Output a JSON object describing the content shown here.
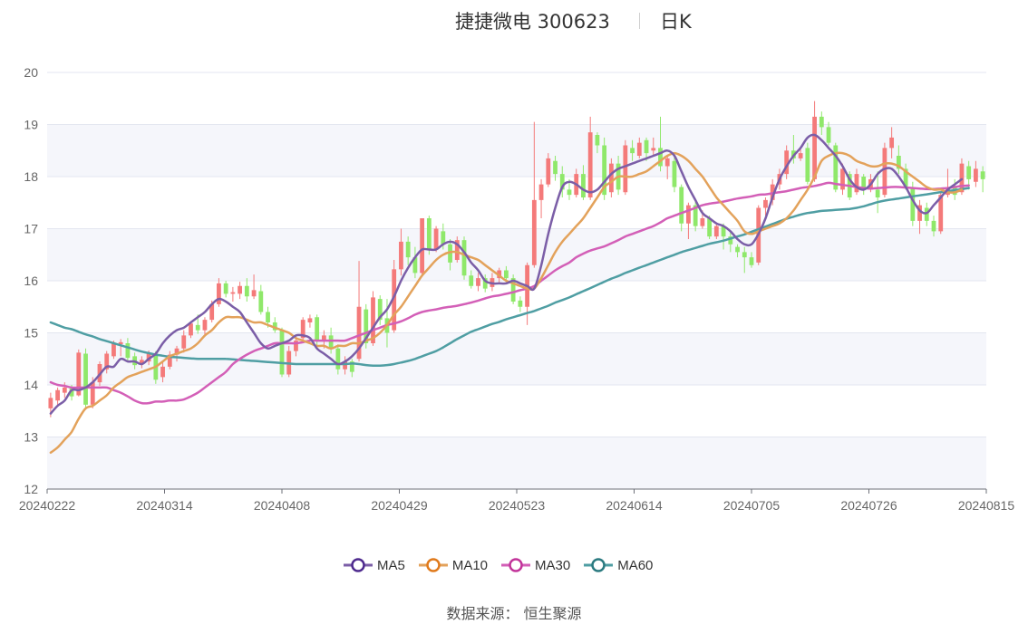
{
  "header": {
    "title": "捷捷微电 300623",
    "subtitle": "日K"
  },
  "footer": {
    "source": "数据来源： 恒生聚源"
  },
  "colors": {
    "up": "#f47a7a",
    "down": "#8fe86a",
    "grid_band": "#f5f6fb",
    "MA5": "#7b5ea7",
    "MA10": "#e3a25b",
    "MA30": "#d35fb7",
    "MA60": "#4f9ea3"
  },
  "chart_data": {
    "type": "candlestick",
    "ylim": [
      12,
      20
    ],
    "yticks": [
      12,
      13,
      14,
      15,
      16,
      17,
      18,
      19,
      20
    ],
    "xticks": [
      "20240222",
      "20240314",
      "20240408",
      "20240429",
      "20240523",
      "20240614",
      "20240705",
      "20240726",
      "20240815"
    ],
    "grid": true,
    "legend_position": "bottom",
    "series_names": [
      "MA5",
      "MA10",
      "MA30",
      "MA60"
    ],
    "candles": [
      [
        13.55,
        13.75,
        13.38,
        13.85
      ],
      [
        13.7,
        13.9,
        13.62,
        13.95
      ],
      [
        13.85,
        13.95,
        13.75,
        14.05
      ],
      [
        13.95,
        13.78,
        13.7,
        14.0
      ],
      [
        13.8,
        14.62,
        13.78,
        14.68
      ],
      [
        14.6,
        13.62,
        13.55,
        14.7
      ],
      [
        13.62,
        14.05,
        13.55,
        14.15
      ],
      [
        14.05,
        14.4,
        13.98,
        14.45
      ],
      [
        14.3,
        14.6,
        14.22,
        14.65
      ],
      [
        14.55,
        14.8,
        14.5,
        14.85
      ],
      [
        14.78,
        14.82,
        14.55,
        14.88
      ],
      [
        14.8,
        14.52,
        14.45,
        14.9
      ],
      [
        14.55,
        14.38,
        14.3,
        14.62
      ],
      [
        14.4,
        14.48,
        14.32,
        14.55
      ],
      [
        14.45,
        14.62,
        14.38,
        14.66
      ],
      [
        14.6,
        14.1,
        14.02,
        14.65
      ],
      [
        14.15,
        14.35,
        14.05,
        14.45
      ],
      [
        14.35,
        14.58,
        14.3,
        14.65
      ],
      [
        14.58,
        14.7,
        14.45,
        14.75
      ],
      [
        14.7,
        14.95,
        14.62,
        15.05
      ],
      [
        14.95,
        15.18,
        14.9,
        15.22
      ],
      [
        15.15,
        15.05,
        14.98,
        15.35
      ],
      [
        15.05,
        15.25,
        14.95,
        15.3
      ],
      [
        15.25,
        15.55,
        15.2,
        15.62
      ],
      [
        15.55,
        15.95,
        15.5,
        16.05
      ],
      [
        15.95,
        15.75,
        15.68,
        16.0
      ],
      [
        15.75,
        15.78,
        15.6,
        15.88
      ],
      [
        15.75,
        15.9,
        15.65,
        15.98
      ],
      [
        15.9,
        15.7,
        15.6,
        16.05
      ],
      [
        15.7,
        15.82,
        15.65,
        16.12
      ],
      [
        15.8,
        15.4,
        15.35,
        15.92
      ],
      [
        15.4,
        15.2,
        15.1,
        15.5
      ],
      [
        15.2,
        15.05,
        15.0,
        15.3
      ],
      [
        15.05,
        14.2,
        14.15,
        15.1
      ],
      [
        14.2,
        14.65,
        14.15,
        14.75
      ],
      [
        14.65,
        14.85,
        14.55,
        14.95
      ],
      [
        14.9,
        15.25,
        14.85,
        15.3
      ],
      [
        15.2,
        15.28,
        15.1,
        15.35
      ],
      [
        15.3,
        14.85,
        14.7,
        15.35
      ],
      [
        14.85,
        14.95,
        14.7,
        15.05
      ],
      [
        14.95,
        14.7,
        14.6,
        15.1
      ],
      [
        14.7,
        14.3,
        14.2,
        14.78
      ],
      [
        14.3,
        14.45,
        14.2,
        14.55
      ],
      [
        14.45,
        14.25,
        14.15,
        14.5
      ],
      [
        14.5,
        15.5,
        14.45,
        16.38
      ],
      [
        15.45,
        14.8,
        14.7,
        15.55
      ],
      [
        14.8,
        15.68,
        14.75,
        15.8
      ],
      [
        15.65,
        15.25,
        15.15,
        15.72
      ],
      [
        15.28,
        15.0,
        14.72,
        15.65
      ],
      [
        15.05,
        16.22,
        15.0,
        16.4
      ],
      [
        16.22,
        16.75,
        16.1,
        17.0
      ],
      [
        16.75,
        16.45,
        16.3,
        16.85
      ],
      [
        16.45,
        16.15,
        16.05,
        16.65
      ],
      [
        16.15,
        17.2,
        16.1,
        17.2
      ],
      [
        17.2,
        16.6,
        16.5,
        17.25
      ],
      [
        16.6,
        17.0,
        16.55,
        17.05
      ],
      [
        16.95,
        16.7,
        16.6,
        17.1
      ],
      [
        16.7,
        16.35,
        16.2,
        16.8
      ],
      [
        16.4,
        16.78,
        16.35,
        16.85
      ],
      [
        16.78,
        16.1,
        16.02,
        16.85
      ],
      [
        16.1,
        15.9,
        15.85,
        16.2
      ],
      [
        15.9,
        16.05,
        15.8,
        16.15
      ],
      [
        16.05,
        15.85,
        15.78,
        16.12
      ],
      [
        15.88,
        16.05,
        15.8,
        16.15
      ],
      [
        16.05,
        16.2,
        15.95,
        16.25
      ],
      [
        16.2,
        16.05,
        15.98,
        16.28
      ],
      [
        16.05,
        15.6,
        15.55,
        16.12
      ],
      [
        15.62,
        15.5,
        15.4,
        15.7
      ],
      [
        15.5,
        16.3,
        15.15,
        16.35
      ],
      [
        16.3,
        17.55,
        16.25,
        19.05
      ],
      [
        17.55,
        17.85,
        17.2,
        17.95
      ],
      [
        17.85,
        18.35,
        17.8,
        18.45
      ],
      [
        18.3,
        18.05,
        17.92,
        18.4
      ],
      [
        18.05,
        17.75,
        17.6,
        18.2
      ],
      [
        17.75,
        17.65,
        17.55,
        17.95
      ],
      [
        17.65,
        18.05,
        17.6,
        18.15
      ],
      [
        18.05,
        17.6,
        17.55,
        18.22
      ],
      [
        17.6,
        18.85,
        17.55,
        19.15
      ],
      [
        18.8,
        18.6,
        18.45,
        18.85
      ],
      [
        18.6,
        17.65,
        17.55,
        18.75
      ],
      [
        17.7,
        18.25,
        17.6,
        18.35
      ],
      [
        18.25,
        17.75,
        17.65,
        18.4
      ],
      [
        17.7,
        18.6,
        17.65,
        18.7
      ],
      [
        18.55,
        18.45,
        18.3,
        18.7
      ],
      [
        18.4,
        18.65,
        18.35,
        18.75
      ],
      [
        18.7,
        18.45,
        18.3,
        18.75
      ],
      [
        18.5,
        18.55,
        18.4,
        18.75
      ],
      [
        18.55,
        18.2,
        18.1,
        19.15
      ],
      [
        18.2,
        18.35,
        17.95,
        18.4
      ],
      [
        18.3,
        17.8,
        17.7,
        18.45
      ],
      [
        17.8,
        17.1,
        16.95,
        17.85
      ],
      [
        17.1,
        17.45,
        16.8,
        17.5
      ],
      [
        17.45,
        17.05,
        16.95,
        17.55
      ],
      [
        17.05,
        17.2,
        17.0,
        17.35
      ],
      [
        17.2,
        16.85,
        16.8,
        17.25
      ],
      [
        16.85,
        17.05,
        16.8,
        17.1
      ],
      [
        17.05,
        16.85,
        16.6,
        17.1
      ],
      [
        16.85,
        16.7,
        16.55,
        16.95
      ],
      [
        16.65,
        16.55,
        16.45,
        16.7
      ],
      [
        16.55,
        16.45,
        16.15,
        16.65
      ],
      [
        16.45,
        16.3,
        16.25,
        16.55
      ],
      [
        16.35,
        17.4,
        16.3,
        17.45
      ],
      [
        17.4,
        17.55,
        17.25,
        17.6
      ],
      [
        17.55,
        17.85,
        17.45,
        17.95
      ],
      [
        17.85,
        18.05,
        17.75,
        18.15
      ],
      [
        18.05,
        18.5,
        17.95,
        18.6
      ],
      [
        18.5,
        18.35,
        18.25,
        18.8
      ],
      [
        18.35,
        18.45,
        18.3,
        18.55
      ],
      [
        18.55,
        17.9,
        17.85,
        18.65
      ],
      [
        17.95,
        19.15,
        17.9,
        19.45
      ],
      [
        19.15,
        18.95,
        18.8,
        19.25
      ],
      [
        18.95,
        18.65,
        18.6,
        19.05
      ],
      [
        18.6,
        17.75,
        17.7,
        18.65
      ],
      [
        17.75,
        18.15,
        17.65,
        18.25
      ],
      [
        18.05,
        17.6,
        17.55,
        18.1
      ],
      [
        17.7,
        18.05,
        17.65,
        18.15
      ],
      [
        18.0,
        17.75,
        17.65,
        18.05
      ],
      [
        17.75,
        17.95,
        17.7,
        18.05
      ],
      [
        17.75,
        17.6,
        17.3,
        18.1
      ],
      [
        17.65,
        18.55,
        17.6,
        18.65
      ],
      [
        18.55,
        18.75,
        18.35,
        18.95
      ],
      [
        18.4,
        18.15,
        18.05,
        18.6
      ],
      [
        18.15,
        17.8,
        17.75,
        18.25
      ],
      [
        17.8,
        17.15,
        17.05,
        17.9
      ],
      [
        17.15,
        17.45,
        16.9,
        17.55
      ],
      [
        17.4,
        17.15,
        17.05,
        17.5
      ],
      [
        17.15,
        16.95,
        16.85,
        17.25
      ],
      [
        16.95,
        17.65,
        16.9,
        17.7
      ],
      [
        17.65,
        17.8,
        17.6,
        18.15
      ],
      [
        17.8,
        17.65,
        17.55,
        17.95
      ],
      [
        17.7,
        18.25,
        17.65,
        18.35
      ],
      [
        18.2,
        17.95,
        17.75,
        18.3
      ],
      [
        17.9,
        18.15,
        17.8,
        18.3
      ],
      [
        18.1,
        17.95,
        17.7,
        18.2
      ]
    ],
    "ma_series": [
      {
        "name": "MA5",
        "values": [
          13.45,
          13.6,
          13.7,
          13.9,
          13.9,
          13.95,
          14.05,
          14.2,
          14.35,
          14.35,
          14.5,
          14.45,
          14.45,
          14.4,
          14.5,
          14.6,
          14.8,
          14.95,
          15.05,
          15.1,
          15.2,
          15.3,
          15.4,
          15.55,
          15.65,
          15.6,
          15.5,
          15.4,
          15.2,
          15.0,
          14.8,
          14.7,
          14.75,
          14.8,
          14.85,
          14.95,
          14.95,
          14.9,
          14.7,
          14.6,
          14.5,
          14.4,
          14.45,
          14.55,
          14.7,
          14.9,
          15.1,
          15.3,
          15.45,
          15.7,
          16.0,
          16.25,
          16.45,
          16.6,
          16.6,
          16.6,
          16.7,
          16.75,
          16.7,
          16.55,
          16.35,
          16.2,
          16.0,
          15.95,
          15.95,
          15.95,
          16.0,
          15.95,
          15.9,
          15.85,
          16.3,
          16.9,
          17.4,
          17.8,
          17.9,
          17.85,
          17.75,
          17.7,
          17.75,
          17.9,
          18.05,
          18.15,
          18.2,
          18.25,
          18.3,
          18.35,
          18.4,
          18.45,
          18.5,
          18.4,
          18.1,
          17.8,
          17.55,
          17.3,
          17.2,
          17.1,
          17.05,
          16.95,
          16.8,
          16.7,
          16.7,
          16.9,
          17.2,
          17.6,
          17.95,
          18.2,
          18.4,
          18.55,
          18.75,
          18.8,
          18.7,
          18.55,
          18.4,
          18.2,
          17.95,
          17.8,
          17.75,
          17.85,
          18.05,
          18.15,
          18.15,
          18.0,
          17.8,
          17.55,
          17.35,
          17.3,
          17.45,
          17.6,
          17.75,
          17.85,
          17.95
        ]
      },
      {
        "name": "MA10",
        "values": [
          12.7,
          12.8,
          12.95,
          13.1,
          13.35,
          13.55,
          13.6,
          13.7,
          13.8,
          13.95,
          14.05,
          14.15,
          14.2,
          14.25,
          14.3,
          14.35,
          14.45,
          14.55,
          14.6,
          14.65,
          14.7,
          14.8,
          14.95,
          15.05,
          15.2,
          15.3,
          15.3,
          15.3,
          15.25,
          15.2,
          15.2,
          15.15,
          15.1,
          15.05,
          15.0,
          14.9,
          14.85,
          14.8,
          14.75,
          14.75,
          14.7,
          14.75,
          14.75,
          14.8,
          14.8,
          14.85,
          14.9,
          15.0,
          15.15,
          15.35,
          15.5,
          15.7,
          15.9,
          16.1,
          16.25,
          16.4,
          16.5,
          16.55,
          16.55,
          16.5,
          16.45,
          16.4,
          16.3,
          16.2,
          16.1,
          16.0,
          15.95,
          15.9,
          15.85,
          15.85,
          16.05,
          16.3,
          16.55,
          16.75,
          16.9,
          17.05,
          17.2,
          17.4,
          17.6,
          17.8,
          17.9,
          18.0,
          18.0,
          18.0,
          18.05,
          18.1,
          18.2,
          18.3,
          18.4,
          18.45,
          18.4,
          18.3,
          18.15,
          18.0,
          17.8,
          17.6,
          17.45,
          17.3,
          17.15,
          16.95,
          16.9,
          16.95,
          17.0,
          17.05,
          17.1,
          17.2,
          17.35,
          17.55,
          17.75,
          18.0,
          18.3,
          18.4,
          18.45,
          18.45,
          18.4,
          18.3,
          18.25,
          18.2,
          18.2,
          18.25,
          18.25,
          18.2,
          18.1,
          18.0,
          17.9,
          17.8,
          17.75,
          17.75,
          17.7,
          17.7,
          17.75
        ]
      },
      {
        "name": "MA30",
        "values": [
          14.05,
          14.0,
          13.98,
          13.95,
          13.95,
          13.95,
          13.95,
          13.95,
          13.95,
          13.9,
          13.85,
          13.78,
          13.7,
          13.65,
          13.65,
          13.68,
          13.68,
          13.7,
          13.7,
          13.72,
          13.78,
          13.85,
          13.95,
          14.05,
          14.15,
          14.25,
          14.4,
          14.5,
          14.58,
          14.65,
          14.7,
          14.75,
          14.8,
          14.8,
          14.8,
          14.8,
          14.82,
          14.85,
          14.85,
          14.85,
          14.85,
          14.85,
          14.85,
          14.9,
          14.95,
          15.0,
          15.05,
          15.1,
          15.15,
          15.18,
          15.22,
          15.28,
          15.35,
          15.4,
          15.43,
          15.45,
          15.48,
          15.5,
          15.52,
          15.55,
          15.58,
          15.62,
          15.66,
          15.7,
          15.72,
          15.75,
          15.78,
          15.82,
          15.85,
          15.9,
          16.0,
          16.1,
          16.2,
          16.28,
          16.35,
          16.45,
          16.52,
          16.58,
          16.62,
          16.66,
          16.72,
          16.78,
          16.85,
          16.9,
          16.95,
          17.0,
          17.05,
          17.12,
          17.2,
          17.25,
          17.3,
          17.35,
          17.4,
          17.45,
          17.48,
          17.5,
          17.52,
          17.55,
          17.58,
          17.6,
          17.62,
          17.65,
          17.66,
          17.68,
          17.7,
          17.72,
          17.75,
          17.78,
          17.8,
          17.82,
          17.85,
          17.88,
          17.86,
          17.84,
          17.82,
          17.8,
          17.78,
          17.77,
          17.78,
          17.79,
          17.8,
          17.8,
          17.79,
          17.78,
          17.77,
          17.76,
          17.76,
          17.77,
          17.78,
          17.8,
          17.82,
          17.83
        ]
      },
      {
        "name": "MA60",
        "values": [
          15.2,
          15.15,
          15.1,
          15.07,
          15.02,
          14.97,
          14.93,
          14.88,
          14.84,
          14.8,
          14.76,
          14.72,
          14.68,
          14.64,
          14.61,
          14.58,
          14.56,
          14.54,
          14.53,
          14.52,
          14.51,
          14.5,
          14.5,
          14.5,
          14.5,
          14.5,
          14.49,
          14.48,
          14.47,
          14.46,
          14.45,
          14.44,
          14.43,
          14.42,
          14.41,
          14.4,
          14.4,
          14.4,
          14.4,
          14.4,
          14.4,
          14.4,
          14.4,
          14.41,
          14.4,
          14.38,
          14.37,
          14.37,
          14.38,
          14.4,
          14.43,
          14.46,
          14.5,
          14.55,
          14.6,
          14.65,
          14.72,
          14.8,
          14.88,
          14.95,
          15.02,
          15.07,
          15.12,
          15.17,
          15.21,
          15.26,
          15.3,
          15.34,
          15.38,
          15.42,
          15.47,
          15.52,
          15.58,
          15.63,
          15.68,
          15.74,
          15.8,
          15.86,
          15.92,
          15.98,
          16.04,
          16.09,
          16.15,
          16.2,
          16.25,
          16.3,
          16.35,
          16.4,
          16.45,
          16.5,
          16.55,
          16.59,
          16.63,
          16.67,
          16.71,
          16.74,
          16.77,
          16.81,
          16.85,
          16.89,
          16.94,
          16.99,
          17.04,
          17.09,
          17.14,
          17.19,
          17.23,
          17.27,
          17.3,
          17.32,
          17.34,
          17.35,
          17.36,
          17.37,
          17.38,
          17.4,
          17.43,
          17.47,
          17.51,
          17.54,
          17.56,
          17.58,
          17.6,
          17.62,
          17.64,
          17.66,
          17.68,
          17.7,
          17.72,
          17.74,
          17.76,
          17.78
        ]
      }
    ]
  }
}
